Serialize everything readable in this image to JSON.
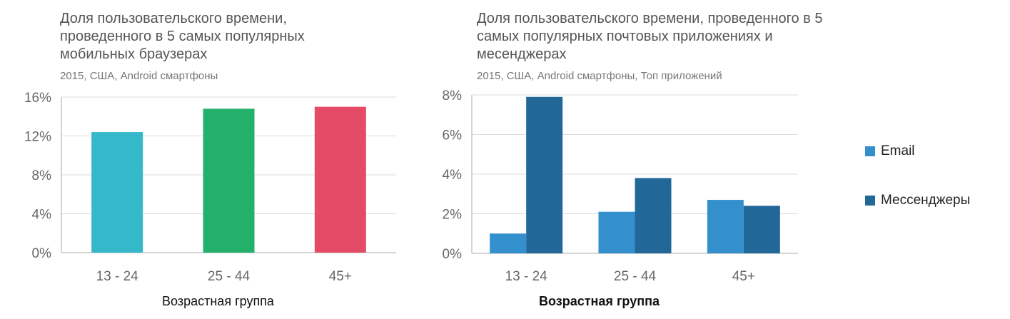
{
  "chart_data": [
    {
      "type": "bar",
      "title": "Доля пользовательского времени, проведенного в 5 самых популярных мобильных браузерах",
      "subtitle": "2015, США, Android смартфоны",
      "xlabel": "Возрастная группа",
      "ylabel": "",
      "categories": [
        "13 - 24",
        "25 - 44",
        "45+"
      ],
      "values": [
        12.4,
        14.8,
        15.0
      ],
      "colors": [
        "#35b8c9",
        "#22b06b",
        "#e54b67"
      ],
      "ylim": [
        0,
        16
      ],
      "yticks": [
        "0%",
        "4%",
        "8%",
        "12%",
        "16%"
      ],
      "grid": true
    },
    {
      "type": "bar",
      "title": "Доля пользовательского времени, проведенного в 5 самых популярных почтовых приложениях и месенджерах",
      "subtitle": "2015, США, Android смартфоны, Топ приложений",
      "xlabel": "Возрастная группа",
      "ylabel": "",
      "categories": [
        "13 - 24",
        "25 - 44",
        "45+"
      ],
      "series": [
        {
          "name": "Email",
          "values": [
            1.0,
            2.1,
            2.7
          ],
          "color": "#348fcd"
        },
        {
          "name": "Мессенджеры",
          "values": [
            7.9,
            3.8,
            2.4
          ],
          "color": "#216898"
        }
      ],
      "ylim": [
        0,
        8
      ],
      "yticks": [
        "0%",
        "2%",
        "4%",
        "6%",
        "8%"
      ],
      "grid": true,
      "legend": "right"
    }
  ]
}
